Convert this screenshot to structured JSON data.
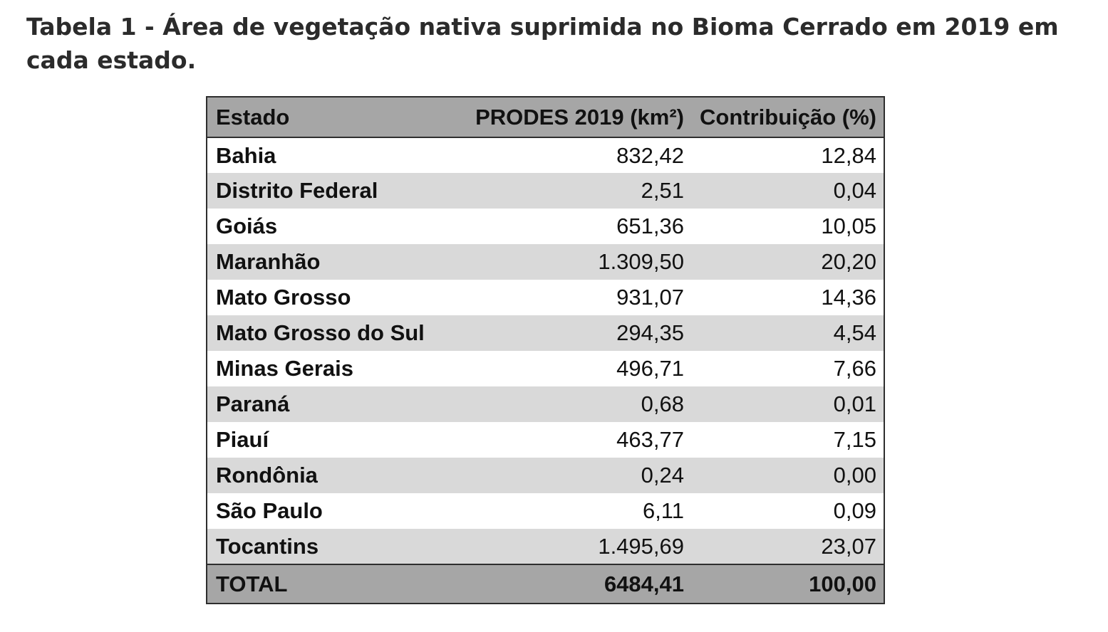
{
  "caption": "Tabela 1 - Área de vegetação nativa suprimida no Bioma Cerrado em 2019 em cada estado.",
  "table": {
    "headers": {
      "state": "Estado",
      "prodes": "PRODES 2019 (km²)",
      "contrib": "Contribuição (%)"
    },
    "rows": [
      {
        "state": "Bahia",
        "prodes": "832,42",
        "contrib": "12,84"
      },
      {
        "state": "Distrito Federal",
        "prodes": "2,51",
        "contrib": "0,04"
      },
      {
        "state": "Goiás",
        "prodes": "651,36",
        "contrib": "10,05"
      },
      {
        "state": "Maranhão",
        "prodes": "1.309,50",
        "contrib": "20,20"
      },
      {
        "state": "Mato Grosso",
        "prodes": "931,07",
        "contrib": "14,36"
      },
      {
        "state": "Mato Grosso do Sul",
        "prodes": "294,35",
        "contrib": "4,54"
      },
      {
        "state": "Minas Gerais",
        "prodes": "496,71",
        "contrib": "7,66"
      },
      {
        "state": "Paraná",
        "prodes": "0,68",
        "contrib": "0,01"
      },
      {
        "state": "Piauí",
        "prodes": "463,77",
        "contrib": "7,15"
      },
      {
        "state": "Rondônia",
        "prodes": "0,24",
        "contrib": "0,00"
      },
      {
        "state": "São Paulo",
        "prodes": "6,11",
        "contrib": "0,09"
      },
      {
        "state": "Tocantins",
        "prodes": "1.495,69",
        "contrib": "23,07"
      }
    ],
    "total": {
      "label": "TOTAL",
      "prodes": "6484,41",
      "contrib": "100,00"
    }
  },
  "colors": {
    "header_bg": "#a6a6a6",
    "stripe_bg": "#d9d9d9",
    "border": "#2e2e2e"
  }
}
